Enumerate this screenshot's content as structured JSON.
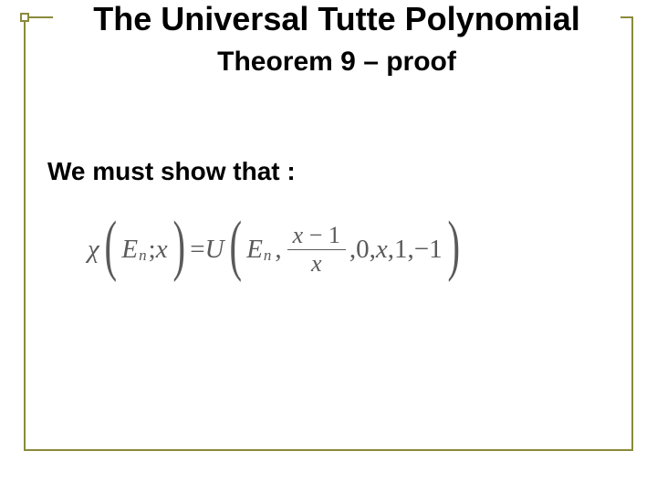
{
  "title": "The Universal Tutte Polynomial",
  "subtitle": "Theorem 9 – proof",
  "body": "We must show that :",
  "equation": {
    "chi": "χ",
    "E": "E",
    "n": "n",
    "semicolon": ";",
    "x": "x",
    "equals": "=",
    "U": "U",
    "frac_num_left": "x",
    "frac_num_minus": "−",
    "frac_num_right": "1",
    "frac_den": "x",
    "args_rest": ",0,",
    "arg_x2": "x",
    "args_tail": ",1,−1",
    "comma": ","
  },
  "style": {
    "title_fontsize": 36,
    "subtitle_fontsize": 30,
    "body_fontsize": 28,
    "border_color": "#8a8a3a",
    "text_color": "#000000",
    "eq_color": "#5a5a5a",
    "background": "#ffffff"
  }
}
